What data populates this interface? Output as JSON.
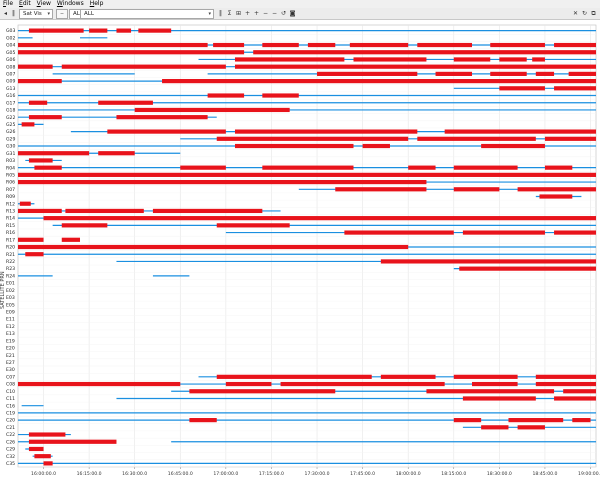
{
  "menu": [
    {
      "label": "File",
      "mnemonic": "F"
    },
    {
      "label": "Edit",
      "mnemonic": "E"
    },
    {
      "label": "View",
      "mnemonic": "V"
    },
    {
      "label": "Windows",
      "mnemonic": "W"
    },
    {
      "label": "Help",
      "mnemonic": "H"
    }
  ],
  "toolbar": {
    "view_select": "Sat Vis",
    "filter_a": "ALL",
    "filter_b": "ALL",
    "icons": [
      "nav-prev-icon",
      "pause-icon",
      "sigma-icon",
      "grid-icon",
      "zoom-in-icon",
      "zoom-in-icon",
      "zoom-out-icon",
      "zoom-out-icon",
      "reset-icon",
      "camera-icon"
    ],
    "window_icons": [
      "close-icon",
      "refresh-icon",
      "popout-icon"
    ]
  },
  "axis": {
    "y_label": "SATELLITE PRN",
    "x_ticks": [
      "16:00:00.0",
      "16:15:00.0",
      "16:30:00.0",
      "16:45:00.0",
      "17:00:00.0",
      "17:15:00.0",
      "17:30:00.0",
      "17:45:00.0",
      "18:00:00.0",
      "18:15:00.0",
      "18:30:00.0",
      "18:45:00.0",
      "19:00:00.0"
    ]
  },
  "colors": {
    "trace": "#1a8fe0",
    "highlight": "#e8131b",
    "grid": "#e6e6e6"
  },
  "chart_data": {
    "type": "scatter",
    "x_range_hours": [
      15.86,
      19.03
    ],
    "rows": [
      {
        "prn": "G03",
        "blue": [
          [
            15.86,
            19.03
          ]
        ],
        "red": [
          [
            15.92,
            16.22
          ],
          [
            16.25,
            16.35
          ],
          [
            16.4,
            16.48
          ],
          [
            16.52,
            16.7
          ]
        ]
      },
      {
        "prn": "G02",
        "blue": [
          [
            15.86,
            15.94
          ],
          [
            16.2,
            16.35
          ]
        ],
        "red": []
      },
      {
        "prn": "G04",
        "blue": [
          [
            15.86,
            19.03
          ]
        ],
        "red": [
          [
            15.86,
            16.9
          ],
          [
            16.93,
            17.1
          ],
          [
            17.2,
            17.4
          ],
          [
            17.45,
            17.6
          ],
          [
            17.68,
            18.0
          ],
          [
            18.05,
            18.35
          ],
          [
            18.45,
            18.75
          ],
          [
            18.8,
            19.03
          ]
        ]
      },
      {
        "prn": "G05",
        "blue": [
          [
            15.86,
            19.03
          ]
        ],
        "red": [
          [
            15.86,
            17.1
          ],
          [
            17.15,
            19.03
          ]
        ]
      },
      {
        "prn": "G06",
        "blue": [
          [
            16.85,
            19.03
          ]
        ],
        "red": [
          [
            17.05,
            17.65
          ],
          [
            17.7,
            18.1
          ],
          [
            18.25,
            18.45
          ],
          [
            18.5,
            18.65
          ],
          [
            18.68,
            18.75
          ]
        ]
      },
      {
        "prn": "G08",
        "blue": [
          [
            15.86,
            19.03
          ]
        ],
        "red": [
          [
            15.86,
            16.05
          ],
          [
            16.1,
            17.0
          ],
          [
            17.05,
            19.03
          ]
        ]
      },
      {
        "prn": "G07",
        "blue": [
          [
            16.05,
            16.5
          ],
          [
            16.9,
            19.03
          ]
        ],
        "red": [
          [
            17.5,
            18.05
          ],
          [
            18.15,
            18.35
          ],
          [
            18.45,
            18.65
          ],
          [
            18.7,
            18.8
          ],
          [
            18.88,
            19.03
          ]
        ]
      },
      {
        "prn": "G09",
        "blue": [
          [
            15.86,
            19.03
          ]
        ],
        "red": [
          [
            15.86,
            16.1
          ],
          [
            16.65,
            19.03
          ]
        ]
      },
      {
        "prn": "G13",
        "blue": [
          [
            18.25,
            19.03
          ]
        ],
        "red": [
          [
            18.5,
            18.75
          ],
          [
            18.8,
            19.03
          ]
        ]
      },
      {
        "prn": "G16",
        "blue": [
          [
            15.86,
            19.03
          ]
        ],
        "red": [
          [
            16.9,
            17.1
          ],
          [
            17.2,
            17.4
          ]
        ]
      },
      {
        "prn": "G17",
        "blue": [
          [
            15.86,
            19.03
          ]
        ],
        "red": [
          [
            15.92,
            16.02
          ],
          [
            16.3,
            16.6
          ]
        ]
      },
      {
        "prn": "G18",
        "blue": [
          [
            15.86,
            19.03
          ]
        ],
        "red": [
          [
            16.5,
            17.35
          ]
        ]
      },
      {
        "prn": "G22",
        "blue": [
          [
            15.86,
            16.95
          ]
        ],
        "red": [
          [
            15.92,
            16.1
          ],
          [
            16.4,
            16.9
          ]
        ]
      },
      {
        "prn": "G25",
        "blue": [
          [
            15.86,
            16.0
          ]
        ],
        "red": [
          [
            15.88,
            15.95
          ]
        ]
      },
      {
        "prn": "G26",
        "blue": [
          [
            16.15,
            19.03
          ]
        ],
        "red": [
          [
            16.35,
            17.0
          ],
          [
            17.05,
            18.05
          ],
          [
            18.2,
            19.03
          ]
        ]
      },
      {
        "prn": "G29",
        "blue": [
          [
            16.75,
            19.03
          ]
        ],
        "red": [
          [
            16.95,
            18.0
          ],
          [
            18.05,
            18.7
          ],
          [
            18.75,
            19.03
          ]
        ]
      },
      {
        "prn": "G30",
        "blue": [
          [
            15.86,
            19.03
          ]
        ],
        "red": [
          [
            17.05,
            17.7
          ],
          [
            17.75,
            17.9
          ],
          [
            18.4,
            18.75
          ]
        ]
      },
      {
        "prn": "G31",
        "blue": [
          [
            15.86,
            16.75
          ]
        ],
        "red": [
          [
            15.86,
            16.25
          ],
          [
            16.3,
            16.5
          ]
        ]
      },
      {
        "prn": "R03",
        "blue": [
          [
            15.9,
            16.1
          ]
        ],
        "red": [
          [
            15.92,
            16.05
          ]
        ]
      },
      {
        "prn": "R04",
        "blue": [
          [
            15.86,
            19.03
          ]
        ],
        "red": [
          [
            15.95,
            16.1
          ],
          [
            16.75,
            17.0
          ],
          [
            17.2,
            17.7
          ],
          [
            18.0,
            18.15
          ],
          [
            18.25,
            18.6
          ],
          [
            18.75,
            18.9
          ]
        ]
      },
      {
        "prn": "R05",
        "blue": [
          [
            15.86,
            19.03
          ]
        ],
        "red": [
          [
            15.86,
            19.03
          ]
        ]
      },
      {
        "prn": "R06",
        "blue": [
          [
            15.86,
            19.03
          ]
        ],
        "red": [
          [
            15.86,
            18.1
          ]
        ]
      },
      {
        "prn": "R07",
        "blue": [
          [
            17.4,
            19.03
          ]
        ],
        "red": [
          [
            17.6,
            18.1
          ],
          [
            18.25,
            18.5
          ],
          [
            18.6,
            19.03
          ]
        ]
      },
      {
        "prn": "R09",
        "blue": [
          [
            18.7,
            18.95
          ]
        ],
        "red": [
          [
            18.72,
            18.9
          ]
        ]
      },
      {
        "prn": "R12",
        "blue": [
          [
            15.86,
            15.95
          ]
        ],
        "red": [
          [
            15.87,
            15.93
          ]
        ]
      },
      {
        "prn": "R13",
        "blue": [
          [
            15.86,
            17.3
          ]
        ],
        "red": [
          [
            15.86,
            16.1
          ],
          [
            16.12,
            16.55
          ],
          [
            16.6,
            17.2
          ]
        ]
      },
      {
        "prn": "R14",
        "blue": [
          [
            15.86,
            19.03
          ]
        ],
        "red": [
          [
            16.0,
            19.03
          ]
        ]
      },
      {
        "prn": "R15",
        "blue": [
          [
            16.05,
            19.03
          ]
        ],
        "red": [
          [
            16.1,
            16.35
          ],
          [
            16.95,
            17.35
          ]
        ]
      },
      {
        "prn": "R16",
        "blue": [
          [
            17.0,
            19.03
          ]
        ],
        "red": [
          [
            17.65,
            18.25
          ],
          [
            18.3,
            18.75
          ],
          [
            18.8,
            19.03
          ]
        ]
      },
      {
        "prn": "R17",
        "blue": [
          [
            15.86,
            16.0
          ]
        ],
        "red": [
          [
            15.86,
            16.0
          ],
          [
            16.1,
            16.2
          ]
        ]
      },
      {
        "prn": "R20",
        "blue": [
          [
            15.86,
            19.03
          ]
        ],
        "red": [
          [
            15.86,
            18.0
          ]
        ]
      },
      {
        "prn": "R21",
        "blue": [
          [
            15.86,
            19.03
          ]
        ],
        "red": [
          [
            15.9,
            16.0
          ]
        ]
      },
      {
        "prn": "R22",
        "blue": [
          [
            16.4,
            19.03
          ]
        ],
        "red": [
          [
            17.85,
            19.03
          ]
        ]
      },
      {
        "prn": "R23",
        "blue": [
          [
            18.25,
            19.03
          ]
        ],
        "red": [
          [
            18.28,
            19.03
          ]
        ]
      },
      {
        "prn": "R24",
        "blue": [
          [
            15.86,
            16.05
          ],
          [
            16.6,
            16.8
          ]
        ],
        "red": []
      },
      {
        "prn": "E01",
        "blue": [],
        "red": []
      },
      {
        "prn": "E02",
        "blue": [],
        "red": []
      },
      {
        "prn": "E03",
        "blue": [],
        "red": []
      },
      {
        "prn": "E05",
        "blue": [],
        "red": []
      },
      {
        "prn": "E09",
        "blue": [],
        "red": []
      },
      {
        "prn": "E11",
        "blue": [],
        "red": []
      },
      {
        "prn": "E12",
        "blue": [],
        "red": []
      },
      {
        "prn": "E13",
        "blue": [],
        "red": []
      },
      {
        "prn": "E19",
        "blue": [],
        "red": []
      },
      {
        "prn": "E20",
        "blue": [],
        "red": []
      },
      {
        "prn": "E21",
        "blue": [],
        "red": []
      },
      {
        "prn": "E27",
        "blue": [],
        "red": []
      },
      {
        "prn": "E30",
        "blue": [],
        "red": []
      },
      {
        "prn": "C07",
        "blue": [
          [
            16.85,
            19.03
          ]
        ],
        "red": [
          [
            16.95,
            17.8
          ],
          [
            17.85,
            18.15
          ],
          [
            18.25,
            18.6
          ],
          [
            18.7,
            19.03
          ]
        ]
      },
      {
        "prn": "C08",
        "blue": [
          [
            15.86,
            19.03
          ]
        ],
        "red": [
          [
            15.86,
            16.75
          ],
          [
            17.0,
            17.25
          ],
          [
            17.3,
            18.2
          ],
          [
            18.35,
            18.6
          ],
          [
            18.7,
            19.03
          ]
        ]
      },
      {
        "prn": "C10",
        "blue": [
          [
            16.7,
            19.03
          ]
        ],
        "red": [
          [
            16.8,
            17.6
          ],
          [
            18.1,
            18.8
          ],
          [
            18.85,
            19.03
          ]
        ]
      },
      {
        "prn": "C11",
        "blue": [
          [
            16.4,
            19.03
          ]
        ],
        "red": [
          [
            18.3,
            18.7
          ],
          [
            18.8,
            19.03
          ]
        ]
      },
      {
        "prn": "C16",
        "blue": [
          [
            15.88,
            16.0
          ]
        ],
        "red": []
      },
      {
        "prn": "C19",
        "blue": [
          [
            15.86,
            19.03
          ]
        ],
        "red": []
      },
      {
        "prn": "C20",
        "blue": [
          [
            15.86,
            19.03
          ]
        ],
        "red": [
          [
            16.8,
            16.95
          ],
          [
            18.25,
            18.4
          ],
          [
            18.55,
            18.85
          ],
          [
            18.9,
            19.0
          ]
        ]
      },
      {
        "prn": "C21",
        "blue": [
          [
            18.3,
            19.03
          ]
        ],
        "red": [
          [
            18.4,
            18.55
          ],
          [
            18.6,
            18.75
          ]
        ]
      },
      {
        "prn": "C22",
        "blue": [
          [
            15.86,
            16.15
          ]
        ],
        "red": [
          [
            15.92,
            16.12
          ]
        ]
      },
      {
        "prn": "C26",
        "blue": [
          [
            15.86,
            16.4
          ],
          [
            16.7,
            19.03
          ]
        ],
        "red": [
          [
            15.92,
            16.4
          ]
        ]
      },
      {
        "prn": "C29",
        "blue": [
          [
            15.9,
            16.0
          ]
        ],
        "red": [
          [
            15.92,
            16.0
          ]
        ]
      },
      {
        "prn": "C32",
        "blue": [
          [
            15.94,
            16.05
          ]
        ],
        "red": [
          [
            15.95,
            16.04
          ]
        ]
      },
      {
        "prn": "C35",
        "blue": [
          [
            15.86,
            19.03
          ]
        ],
        "red": [
          [
            16.0,
            16.05
          ]
        ]
      }
    ]
  }
}
